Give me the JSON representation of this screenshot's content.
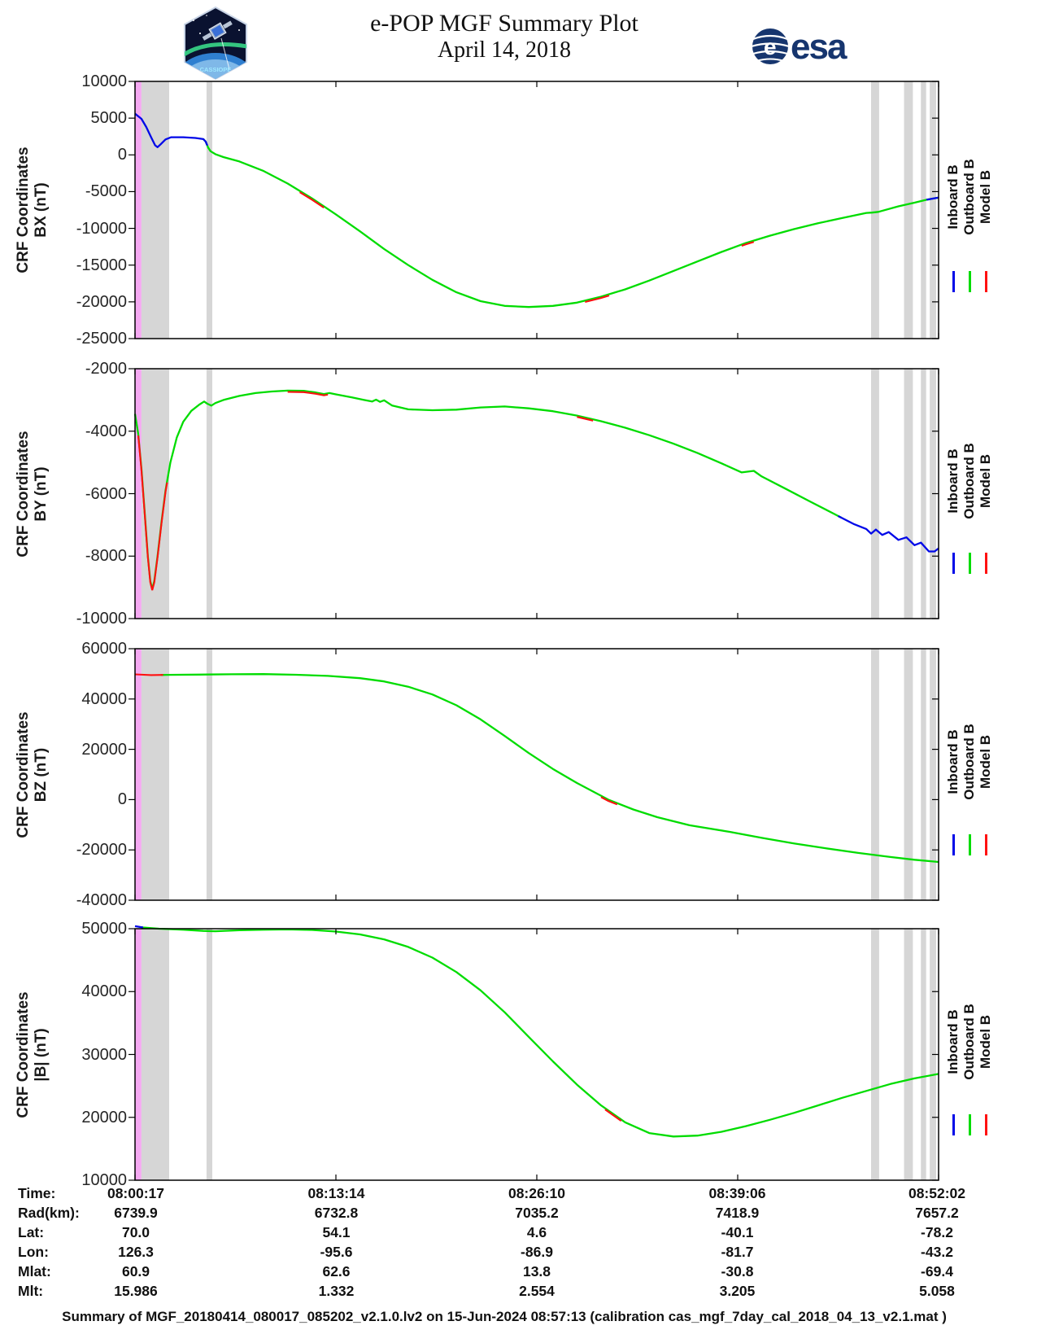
{
  "header": {
    "title_line1": "e-POP MGF Summary Plot",
    "title_line2": "April 14, 2018",
    "patch_text": "CASSIOPE",
    "esa_text": "esa"
  },
  "colors": {
    "outboard_green": "#00dc00",
    "inboard_blue": "#0008e8",
    "model_red": "#ff1010",
    "band_gray": "#d6d6d6",
    "band_pink": "#f5a9f2",
    "axis_black": "#000000",
    "tick_text": "#262626",
    "esa_blue": "#16356e"
  },
  "chart_data": {
    "type": "line",
    "title": "e-POP MGF Summary Plot April 14, 2018",
    "x_axis": {
      "label": "Time",
      "tick_labels": [
        "08:00:17",
        "08:13:14",
        "08:26:10",
        "08:39:06",
        "08:52:02"
      ],
      "range_note": "x positions stored as fraction 0-1 of time span 08:00:17 to 08:52:02"
    },
    "legend": [
      {
        "name": "Inboard B",
        "color_key": "inboard_blue"
      },
      {
        "name": "Outboard B",
        "color_key": "outboard_green"
      },
      {
        "name": "Model B",
        "color_key": "model_red"
      }
    ],
    "bands": {
      "pink": [
        [
          0.0,
          0.008
        ]
      ],
      "gray": [
        [
          0.008,
          0.0425
        ],
        [
          0.089,
          0.0962
        ],
        [
          0.916,
          0.926
        ],
        [
          0.957,
          0.968
        ],
        [
          0.978,
          0.9845
        ],
        [
          0.989,
          0.997
        ]
      ]
    },
    "panels": [
      {
        "id": "bx",
        "ylabel_line1": "CRF Coordinates",
        "ylabel_line2": "BX (nT)",
        "ymax": 10000,
        "ymin": -25000,
        "ytick_step": 5000,
        "points": [
          [
            0,
            5600
          ],
          [
            0.008,
            4900
          ],
          [
            0.014,
            3800
          ],
          [
            0.02,
            2400
          ],
          [
            0.025,
            1300
          ],
          [
            0.028,
            1050
          ],
          [
            0.032,
            1450
          ],
          [
            0.038,
            2100
          ],
          [
            0.045,
            2400
          ],
          [
            0.06,
            2400
          ],
          [
            0.075,
            2300
          ],
          [
            0.085,
            2150
          ],
          [
            0.088,
            1800
          ],
          [
            0.091,
            1000
          ],
          [
            0.094,
            500
          ],
          [
            0.1,
            100
          ],
          [
            0.11,
            -300
          ],
          [
            0.13,
            -900
          ],
          [
            0.16,
            -2200
          ],
          [
            0.19,
            -3900
          ],
          [
            0.22,
            -5900
          ],
          [
            0.25,
            -8100
          ],
          [
            0.28,
            -10400
          ],
          [
            0.31,
            -12800
          ],
          [
            0.34,
            -15000
          ],
          [
            0.37,
            -17000
          ],
          [
            0.4,
            -18700
          ],
          [
            0.43,
            -19900
          ],
          [
            0.46,
            -20550
          ],
          [
            0.49,
            -20700
          ],
          [
            0.52,
            -20550
          ],
          [
            0.55,
            -20100
          ],
          [
            0.58,
            -19300
          ],
          [
            0.61,
            -18300
          ],
          [
            0.64,
            -17100
          ],
          [
            0.67,
            -15800
          ],
          [
            0.7,
            -14500
          ],
          [
            0.73,
            -13200
          ],
          [
            0.76,
            -12000
          ],
          [
            0.79,
            -11000
          ],
          [
            0.82,
            -10100
          ],
          [
            0.85,
            -9300
          ],
          [
            0.88,
            -8600
          ],
          [
            0.91,
            -7900
          ],
          [
            0.917,
            -7850
          ],
          [
            0.925,
            -7750
          ],
          [
            0.95,
            -7000
          ],
          [
            0.97,
            -6500
          ],
          [
            0.985,
            -6100
          ],
          [
            1,
            -5800
          ]
        ],
        "green_range": [
          0.085,
          1.0
        ],
        "blue_ranges": [
          [
            0,
            0.09
          ],
          [
            0.985,
            1.0
          ]
        ],
        "red_ranges": [
          [
            0.205,
            0.235
          ],
          [
            0.56,
            0.59
          ],
          [
            0.755,
            0.77
          ]
        ]
      },
      {
        "id": "by",
        "ylabel_line1": "CRF Coordinates",
        "ylabel_line2": "BY (nT)",
        "ymax": -2000,
        "ymin": -10000,
        "ytick_step": 2000,
        "points": [
          [
            0,
            -3450
          ],
          [
            0.004,
            -4100
          ],
          [
            0.008,
            -5200
          ],
          [
            0.012,
            -6600
          ],
          [
            0.016,
            -8000
          ],
          [
            0.019,
            -8800
          ],
          [
            0.0215,
            -9050
          ],
          [
            0.024,
            -8800
          ],
          [
            0.028,
            -8000
          ],
          [
            0.033,
            -6900
          ],
          [
            0.038,
            -5900
          ],
          [
            0.044,
            -5000
          ],
          [
            0.052,
            -4200
          ],
          [
            0.06,
            -3700
          ],
          [
            0.07,
            -3350
          ],
          [
            0.08,
            -3150
          ],
          [
            0.086,
            -3050
          ],
          [
            0.09,
            -3120
          ],
          [
            0.095,
            -3180
          ],
          [
            0.1,
            -3100
          ],
          [
            0.11,
            -3000
          ],
          [
            0.13,
            -2870
          ],
          [
            0.15,
            -2780
          ],
          [
            0.17,
            -2730
          ],
          [
            0.19,
            -2700
          ],
          [
            0.21,
            -2710
          ],
          [
            0.225,
            -2760
          ],
          [
            0.235,
            -2810
          ],
          [
            0.242,
            -2780
          ],
          [
            0.25,
            -2820
          ],
          [
            0.27,
            -2920
          ],
          [
            0.285,
            -3000
          ],
          [
            0.295,
            -3050
          ],
          [
            0.3,
            -2990
          ],
          [
            0.305,
            -3060
          ],
          [
            0.31,
            -3010
          ],
          [
            0.32,
            -3180
          ],
          [
            0.34,
            -3300
          ],
          [
            0.37,
            -3330
          ],
          [
            0.4,
            -3310
          ],
          [
            0.43,
            -3240
          ],
          [
            0.46,
            -3210
          ],
          [
            0.49,
            -3270
          ],
          [
            0.52,
            -3360
          ],
          [
            0.55,
            -3500
          ],
          [
            0.58,
            -3680
          ],
          [
            0.61,
            -3890
          ],
          [
            0.64,
            -4130
          ],
          [
            0.67,
            -4400
          ],
          [
            0.7,
            -4700
          ],
          [
            0.73,
            -5030
          ],
          [
            0.755,
            -5320
          ],
          [
            0.77,
            -5270
          ],
          [
            0.78,
            -5450
          ],
          [
            0.81,
            -5850
          ],
          [
            0.84,
            -6250
          ],
          [
            0.87,
            -6650
          ],
          [
            0.895,
            -6980
          ],
          [
            0.91,
            -7130
          ],
          [
            0.916,
            -7280
          ],
          [
            0.922,
            -7150
          ],
          [
            0.93,
            -7320
          ],
          [
            0.938,
            -7230
          ],
          [
            0.95,
            -7480
          ],
          [
            0.96,
            -7400
          ],
          [
            0.97,
            -7650
          ],
          [
            0.978,
            -7570
          ],
          [
            0.988,
            -7850
          ],
          [
            0.995,
            -7850
          ],
          [
            1,
            -7750
          ]
        ],
        "green_range": [
          0,
          0.879
        ],
        "blue_ranges": [
          [
            0.875,
            1.0
          ]
        ],
        "red_ranges": [
          [
            0.004,
            0.04
          ],
          [
            0.19,
            0.24
          ],
          [
            0.55,
            0.57
          ]
        ]
      },
      {
        "id": "bz",
        "ylabel_line1": "CRF Coordinates",
        "ylabel_line2": "BZ (nT)",
        "ymax": 60000,
        "ymin": -40000,
        "ytick_step": 20000,
        "points": [
          [
            0,
            49800
          ],
          [
            0.02,
            49500
          ],
          [
            0.04,
            49600
          ],
          [
            0.08,
            49700
          ],
          [
            0.12,
            49850
          ],
          [
            0.16,
            49900
          ],
          [
            0.2,
            49650
          ],
          [
            0.24,
            49200
          ],
          [
            0.28,
            48300
          ],
          [
            0.31,
            47000
          ],
          [
            0.34,
            44900
          ],
          [
            0.37,
            41800
          ],
          [
            0.4,
            37500
          ],
          [
            0.43,
            31900
          ],
          [
            0.46,
            25300
          ],
          [
            0.49,
            18500
          ],
          [
            0.52,
            12200
          ],
          [
            0.55,
            6600
          ],
          [
            0.589,
            0
          ],
          [
            0.62,
            -3900
          ],
          [
            0.65,
            -7000
          ],
          [
            0.69,
            -10200
          ],
          [
            0.74,
            -12800
          ],
          [
            0.78,
            -15200
          ],
          [
            0.82,
            -17400
          ],
          [
            0.86,
            -19400
          ],
          [
            0.9,
            -21200
          ],
          [
            0.94,
            -22800
          ],
          [
            0.97,
            -23900
          ],
          [
            1,
            -24800
          ]
        ],
        "green_range": [
          0.032,
          1.0
        ],
        "blue_ranges": [],
        "red_ranges": [
          [
            0,
            0.035
          ],
          [
            0.58,
            0.6
          ]
        ]
      },
      {
        "id": "bmag",
        "ylabel_line1": "CRF Coordinates",
        "ylabel_line2": "|B| (nT)",
        "ymax": 50000,
        "ymin": 10000,
        "ytick_step": 10000,
        "points": [
          [
            0,
            50400
          ],
          [
            0.01,
            50200
          ],
          [
            0.03,
            50000
          ],
          [
            0.06,
            49850
          ],
          [
            0.085,
            49650
          ],
          [
            0.1,
            49600
          ],
          [
            0.13,
            49750
          ],
          [
            0.16,
            49850
          ],
          [
            0.19,
            49900
          ],
          [
            0.22,
            49800
          ],
          [
            0.25,
            49550
          ],
          [
            0.28,
            49100
          ],
          [
            0.31,
            48300
          ],
          [
            0.34,
            47100
          ],
          [
            0.37,
            45400
          ],
          [
            0.4,
            43100
          ],
          [
            0.43,
            40200
          ],
          [
            0.46,
            36700
          ],
          [
            0.49,
            32800
          ],
          [
            0.52,
            28900
          ],
          [
            0.55,
            25200
          ],
          [
            0.58,
            21900
          ],
          [
            0.61,
            19200
          ],
          [
            0.64,
            17500
          ],
          [
            0.67,
            16950
          ],
          [
            0.7,
            17100
          ],
          [
            0.73,
            17700
          ],
          [
            0.76,
            18600
          ],
          [
            0.79,
            19600
          ],
          [
            0.82,
            20700
          ],
          [
            0.85,
            21900
          ],
          [
            0.88,
            23100
          ],
          [
            0.91,
            24200
          ],
          [
            0.94,
            25300
          ],
          [
            0.97,
            26200
          ],
          [
            1,
            26900
          ]
        ],
        "green_range": [
          0.008,
          1.0
        ],
        "blue_ranges": [
          [
            0,
            0.01
          ]
        ],
        "red_ranges": [
          [
            0.585,
            0.605
          ]
        ]
      }
    ]
  },
  "table": {
    "rows": [
      {
        "label": "Time:",
        "values": [
          "08:00:17",
          "08:13:14",
          "08:26:10",
          "08:39:06",
          "08:52:02"
        ]
      },
      {
        "label": "Rad(km):",
        "values": [
          "6739.9",
          "6732.8",
          "7035.2",
          "7418.9",
          "7657.2"
        ]
      },
      {
        "label": "Lat:",
        "values": [
          "70.0",
          "54.1",
          "4.6",
          "-40.1",
          "-78.2"
        ]
      },
      {
        "label": "Lon:",
        "values": [
          "126.3",
          "-95.6",
          "-86.9",
          "-81.7",
          "-43.2"
        ]
      },
      {
        "label": "Mlat:",
        "values": [
          "60.9",
          "62.6",
          "13.8",
          "-30.8",
          "-69.4"
        ]
      },
      {
        "label": "Mlt:",
        "values": [
          "15.986",
          "1.332",
          "2.554",
          "3.205",
          "5.058"
        ]
      }
    ]
  },
  "footer": "Summary of MGF_20180414_080017_085202_v2.1.0.lv2 on 15-Jun-2024 08:57:13 (calibration cas_mgf_7day_cal_2018_04_13_v2.1.mat )"
}
